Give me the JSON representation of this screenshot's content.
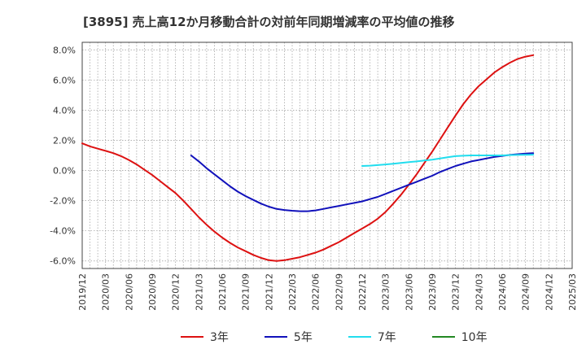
{
  "title": "[3895]  売上高12か月移動合計の対前年同期増減率の平均値の推移",
  "chart_data": {
    "type": "line",
    "title": "[3895]  売上高12か月移動合計の対前年同期増減率の平均値の推移",
    "xlabel": "",
    "ylabel": "",
    "xlim": [
      "2019-12",
      "2025-03"
    ],
    "ylim": [
      -6.5,
      8.5
    ],
    "x_ticks": [
      "2019/12",
      "2020/03",
      "2020/06",
      "2020/09",
      "2020/12",
      "2021/03",
      "2021/06",
      "2021/09",
      "2021/12",
      "2022/03",
      "2022/06",
      "2022/09",
      "2022/12",
      "2023/03",
      "2023/06",
      "2023/09",
      "2023/12",
      "2024/03",
      "2024/06",
      "2024/09",
      "2024/12",
      "2025/03"
    ],
    "y_ticks": [
      -6.0,
      -4.0,
      -2.0,
      0.0,
      2.0,
      4.0,
      6.0,
      8.0
    ],
    "y_tick_labels": [
      "-6.0%",
      "-4.0%",
      "-2.0%",
      "0.0%",
      "2.0%",
      "4.0%",
      "6.0%",
      "8.0%"
    ],
    "grid": true,
    "legend_position": "bottom",
    "series": [
      {
        "name": "3年",
        "color": "#dd1111",
        "points": [
          [
            "2019-12",
            1.8
          ],
          [
            "2020-01",
            1.6
          ],
          [
            "2020-02",
            1.45
          ],
          [
            "2020-03",
            1.3
          ],
          [
            "2020-04",
            1.15
          ],
          [
            "2020-05",
            0.95
          ],
          [
            "2020-06",
            0.7
          ],
          [
            "2020-07",
            0.4
          ],
          [
            "2020-08",
            0.05
          ],
          [
            "2020-09",
            -0.3
          ],
          [
            "2020-10",
            -0.7
          ],
          [
            "2020-11",
            -1.1
          ],
          [
            "2020-12",
            -1.5
          ],
          [
            "2021-01",
            -2.0
          ],
          [
            "2021-02",
            -2.55
          ],
          [
            "2021-03",
            -3.1
          ],
          [
            "2021-04",
            -3.6
          ],
          [
            "2021-05",
            -4.05
          ],
          [
            "2021-06",
            -4.45
          ],
          [
            "2021-07",
            -4.8
          ],
          [
            "2021-08",
            -5.1
          ],
          [
            "2021-09",
            -5.35
          ],
          [
            "2021-10",
            -5.6
          ],
          [
            "2021-11",
            -5.8
          ],
          [
            "2021-12",
            -5.95
          ],
          [
            "2022-01",
            -6.0
          ],
          [
            "2022-02",
            -5.95
          ],
          [
            "2022-03",
            -5.85
          ],
          [
            "2022-04",
            -5.75
          ],
          [
            "2022-05",
            -5.6
          ],
          [
            "2022-06",
            -5.45
          ],
          [
            "2022-07",
            -5.25
          ],
          [
            "2022-08",
            -5.0
          ],
          [
            "2022-09",
            -4.75
          ],
          [
            "2022-10",
            -4.45
          ],
          [
            "2022-11",
            -4.15
          ],
          [
            "2022-12",
            -3.85
          ],
          [
            "2023-01",
            -3.55
          ],
          [
            "2023-02",
            -3.2
          ],
          [
            "2023-03",
            -2.75
          ],
          [
            "2023-04",
            -2.2
          ],
          [
            "2023-05",
            -1.6
          ],
          [
            "2023-06",
            -0.95
          ],
          [
            "2023-07",
            -0.25
          ],
          [
            "2023-08",
            0.5
          ],
          [
            "2023-09",
            1.25
          ],
          [
            "2023-10",
            2.05
          ],
          [
            "2023-11",
            2.85
          ],
          [
            "2023-12",
            3.65
          ],
          [
            "2024-01",
            4.4
          ],
          [
            "2024-02",
            5.05
          ],
          [
            "2024-03",
            5.6
          ],
          [
            "2024-04",
            6.05
          ],
          [
            "2024-05",
            6.5
          ],
          [
            "2024-06",
            6.85
          ],
          [
            "2024-07",
            7.15
          ],
          [
            "2024-08",
            7.4
          ],
          [
            "2024-09",
            7.55
          ],
          [
            "2024-10",
            7.65
          ]
        ]
      },
      {
        "name": "5年",
        "color": "#1111bb",
        "points": [
          [
            "2021-02",
            1.0
          ],
          [
            "2021-03",
            0.6
          ],
          [
            "2021-04",
            0.15
          ],
          [
            "2021-05",
            -0.25
          ],
          [
            "2021-06",
            -0.65
          ],
          [
            "2021-07",
            -1.05
          ],
          [
            "2021-08",
            -1.4
          ],
          [
            "2021-09",
            -1.7
          ],
          [
            "2021-10",
            -1.95
          ],
          [
            "2021-11",
            -2.2
          ],
          [
            "2021-12",
            -2.4
          ],
          [
            "2022-01",
            -2.55
          ],
          [
            "2022-02",
            -2.62
          ],
          [
            "2022-03",
            -2.67
          ],
          [
            "2022-04",
            -2.7
          ],
          [
            "2022-05",
            -2.7
          ],
          [
            "2022-06",
            -2.65
          ],
          [
            "2022-07",
            -2.55
          ],
          [
            "2022-08",
            -2.45
          ],
          [
            "2022-09",
            -2.35
          ],
          [
            "2022-10",
            -2.25
          ],
          [
            "2022-11",
            -2.15
          ],
          [
            "2022-12",
            -2.05
          ],
          [
            "2023-01",
            -1.9
          ],
          [
            "2023-02",
            -1.75
          ],
          [
            "2023-03",
            -1.55
          ],
          [
            "2023-04",
            -1.35
          ],
          [
            "2023-05",
            -1.15
          ],
          [
            "2023-06",
            -0.95
          ],
          [
            "2023-07",
            -0.75
          ],
          [
            "2023-08",
            -0.55
          ],
          [
            "2023-09",
            -0.35
          ],
          [
            "2023-10",
            -0.1
          ],
          [
            "2023-11",
            0.1
          ],
          [
            "2023-12",
            0.3
          ],
          [
            "2024-01",
            0.45
          ],
          [
            "2024-02",
            0.6
          ],
          [
            "2024-03",
            0.7
          ],
          [
            "2024-04",
            0.8
          ],
          [
            "2024-05",
            0.9
          ],
          [
            "2024-06",
            0.97
          ],
          [
            "2024-07",
            1.03
          ],
          [
            "2024-08",
            1.08
          ],
          [
            "2024-09",
            1.12
          ],
          [
            "2024-10",
            1.15
          ]
        ]
      },
      {
        "name": "7年",
        "color": "#22ddee",
        "points": [
          [
            "2022-12",
            0.3
          ],
          [
            "2023-01",
            0.32
          ],
          [
            "2023-02",
            0.36
          ],
          [
            "2023-03",
            0.4
          ],
          [
            "2023-04",
            0.45
          ],
          [
            "2023-05",
            0.5
          ],
          [
            "2023-06",
            0.55
          ],
          [
            "2023-07",
            0.6
          ],
          [
            "2023-08",
            0.66
          ],
          [
            "2023-09",
            0.72
          ],
          [
            "2023-10",
            0.8
          ],
          [
            "2023-11",
            0.88
          ],
          [
            "2023-12",
            0.95
          ],
          [
            "2024-01",
            0.98
          ],
          [
            "2024-02",
            1.0
          ],
          [
            "2024-03",
            1.0
          ],
          [
            "2024-04",
            1.0
          ],
          [
            "2024-05",
            1.0
          ],
          [
            "2024-06",
            1.0
          ],
          [
            "2024-07",
            1.02
          ],
          [
            "2024-08",
            1.03
          ],
          [
            "2024-09",
            1.04
          ],
          [
            "2024-10",
            1.05
          ]
        ]
      },
      {
        "name": "10年",
        "color": "#228822",
        "points": []
      }
    ]
  }
}
